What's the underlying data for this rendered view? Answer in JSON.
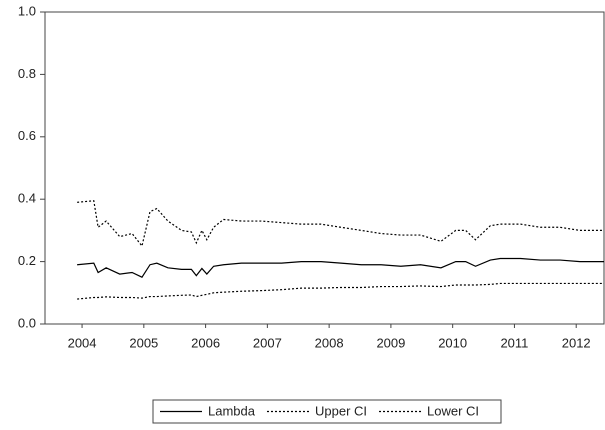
{
  "chart_data": {
    "type": "line",
    "x": [
      2004.42,
      2004.69,
      2004.76,
      2004.89,
      2005.11,
      2005.31,
      2005.47,
      2005.6,
      2005.71,
      2005.89,
      2006.11,
      2006.27,
      2006.35,
      2006.44,
      2006.52,
      2006.63,
      2006.79,
      2007.08,
      2007.4,
      2007.73,
      2008.05,
      2008.37,
      2008.69,
      2009.02,
      2009.34,
      2009.66,
      2009.98,
      2010.31,
      2010.55,
      2010.71,
      2010.87,
      2011.11,
      2011.27,
      2011.6,
      2011.92,
      2012.24,
      2012.56,
      2012.95
    ],
    "series": [
      {
        "name": "Lambda",
        "color": "#000000",
        "line_style": "solid",
        "values": [
          0.19,
          0.195,
          0.165,
          0.18,
          0.16,
          0.165,
          0.15,
          0.19,
          0.195,
          0.18,
          0.175,
          0.175,
          0.155,
          0.178,
          0.16,
          0.185,
          0.19,
          0.195,
          0.195,
          0.195,
          0.2,
          0.2,
          0.195,
          0.19,
          0.19,
          0.185,
          0.19,
          0.18,
          0.2,
          0.2,
          0.185,
          0.205,
          0.21,
          0.21,
          0.205,
          0.205,
          0.2,
          0.2
        ]
      },
      {
        "name": "Upper CI",
        "color": "#000000",
        "line_style": "dotted",
        "values": [
          0.39,
          0.395,
          0.31,
          0.33,
          0.28,
          0.29,
          0.25,
          0.36,
          0.37,
          0.33,
          0.3,
          0.295,
          0.26,
          0.3,
          0.27,
          0.31,
          0.335,
          0.33,
          0.33,
          0.325,
          0.32,
          0.32,
          0.31,
          0.3,
          0.29,
          0.285,
          0.285,
          0.265,
          0.3,
          0.3,
          0.27,
          0.315,
          0.32,
          0.32,
          0.31,
          0.31,
          0.3,
          0.3
        ]
      },
      {
        "name": "Lower CI",
        "color": "#000000",
        "line_style": "dotted",
        "values": [
          0.08,
          0.085,
          0.085,
          0.087,
          0.085,
          0.085,
          0.083,
          0.088,
          0.088,
          0.09,
          0.092,
          0.093,
          0.088,
          0.092,
          0.095,
          0.1,
          0.102,
          0.105,
          0.107,
          0.11,
          0.115,
          0.115,
          0.117,
          0.117,
          0.12,
          0.12,
          0.122,
          0.12,
          0.125,
          0.125,
          0.125,
          0.127,
          0.13,
          0.13,
          0.13,
          0.13,
          0.13,
          0.13
        ]
      }
    ],
    "xlim": [
      2003.9,
      2012.95
    ],
    "xticks": [
      {
        "value": 2004.5,
        "label": "2004"
      },
      {
        "value": 2005.5,
        "label": "2005"
      },
      {
        "value": 2006.5,
        "label": "2006"
      },
      {
        "value": 2007.5,
        "label": "2007"
      },
      {
        "value": 2008.5,
        "label": "2008"
      },
      {
        "value": 2009.5,
        "label": "2009"
      },
      {
        "value": 2010.5,
        "label": "2010"
      },
      {
        "value": 2011.5,
        "label": "2011"
      },
      {
        "value": 2012.5,
        "label": "2012"
      }
    ],
    "ylim": [
      0,
      1
    ],
    "yticks": [
      {
        "value": 0,
        "label": "0.0"
      },
      0.2,
      0.4,
      0.6,
      0.8,
      {
        "value": 1,
        "label": "1.0"
      }
    ],
    "legend": "bottom"
  }
}
